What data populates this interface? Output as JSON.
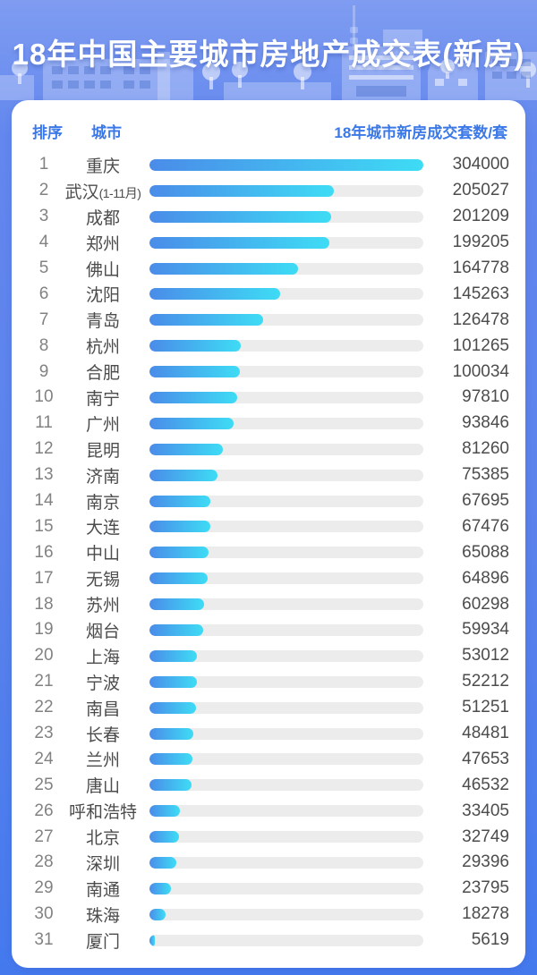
{
  "title": "18年中国主要城市房地产成交表(新房)",
  "table": {
    "rank_header": "排序",
    "city_header": "城市",
    "value_header": "18年城市新房成交套数/套"
  },
  "colors": {
    "background_blue": "#5b82ec",
    "header_label_blue": "#3b78e8",
    "bar_gradient_start": "#4a8ce9",
    "bar_gradient_end": "#3edcf5",
    "bar_track": "#ececec",
    "rank_text": "#828282",
    "body_text": "#4c4c4c"
  },
  "rows": [
    {
      "rank": "1",
      "city": "重庆",
      "note": "",
      "value": "304000"
    },
    {
      "rank": "2",
      "city": "武汉",
      "note": "(1-11月)",
      "value": "205027"
    },
    {
      "rank": "3",
      "city": "成都",
      "note": "",
      "value": "201209"
    },
    {
      "rank": "4",
      "city": "郑州",
      "note": "",
      "value": "199205"
    },
    {
      "rank": "5",
      "city": "佛山",
      "note": "",
      "value": "164778"
    },
    {
      "rank": "6",
      "city": "沈阳",
      "note": "",
      "value": "145263"
    },
    {
      "rank": "7",
      "city": "青岛",
      "note": "",
      "value": "126478"
    },
    {
      "rank": "8",
      "city": "杭州",
      "note": "",
      "value": "101265"
    },
    {
      "rank": "9",
      "city": "合肥",
      "note": "",
      "value": "100034"
    },
    {
      "rank": "10",
      "city": "南宁",
      "note": "",
      "value": "97810"
    },
    {
      "rank": "11",
      "city": "广州",
      "note": "",
      "value": "93846"
    },
    {
      "rank": "12",
      "city": "昆明",
      "note": "",
      "value": "81260"
    },
    {
      "rank": "13",
      "city": "济南",
      "note": "",
      "value": "75385"
    },
    {
      "rank": "14",
      "city": "南京",
      "note": "",
      "value": "67695"
    },
    {
      "rank": "15",
      "city": "大连",
      "note": "",
      "value": "67476"
    },
    {
      "rank": "16",
      "city": "中山",
      "note": "",
      "value": "65088"
    },
    {
      "rank": "17",
      "city": "无锡",
      "note": "",
      "value": "64896"
    },
    {
      "rank": "18",
      "city": "苏州",
      "note": "",
      "value": "60298"
    },
    {
      "rank": "19",
      "city": "烟台",
      "note": "",
      "value": "59934"
    },
    {
      "rank": "20",
      "city": "上海",
      "note": "",
      "value": "53012"
    },
    {
      "rank": "21",
      "city": "宁波",
      "note": "",
      "value": "52212"
    },
    {
      "rank": "22",
      "city": "南昌",
      "note": "",
      "value": "51251"
    },
    {
      "rank": "23",
      "city": "长春",
      "note": "",
      "value": "48481"
    },
    {
      "rank": "24",
      "city": "兰州",
      "note": "",
      "value": "47653"
    },
    {
      "rank": "25",
      "city": "唐山",
      "note": "",
      "value": "46532"
    },
    {
      "rank": "26",
      "city": "呼和浩特",
      "note": "",
      "value": "33405"
    },
    {
      "rank": "27",
      "city": "北京",
      "note": "",
      "value": "32749"
    },
    {
      "rank": "28",
      "city": "深圳",
      "note": "",
      "value": "29396"
    },
    {
      "rank": "29",
      "city": "南通",
      "note": "",
      "value": "23795"
    },
    {
      "rank": "30",
      "city": "珠海",
      "note": "",
      "value": "18278"
    },
    {
      "rank": "31",
      "city": "厦门",
      "note": "",
      "value": "5619"
    }
  ],
  "chart_data": {
    "type": "bar",
    "orientation": "horizontal",
    "title": "18年中国主要城市房地产成交表(新房)",
    "value_label": "18年城市新房成交套数/套",
    "categories": [
      "重庆",
      "武汉(1-11月)",
      "成都",
      "郑州",
      "佛山",
      "沈阳",
      "青岛",
      "杭州",
      "合肥",
      "南宁",
      "广州",
      "昆明",
      "济南",
      "南京",
      "大连",
      "中山",
      "无锡",
      "苏州",
      "烟台",
      "上海",
      "宁波",
      "南昌",
      "长春",
      "兰州",
      "唐山",
      "呼和浩特",
      "北京",
      "深圳",
      "南通",
      "珠海",
      "厦门"
    ],
    "values": [
      304000,
      205027,
      201209,
      199205,
      164778,
      145263,
      126478,
      101265,
      100034,
      97810,
      93846,
      81260,
      75385,
      67695,
      67476,
      65088,
      64896,
      60298,
      59934,
      53012,
      52212,
      51251,
      48481,
      47653,
      46532,
      33405,
      32749,
      29396,
      23795,
      18278,
      5619
    ],
    "xlim": [
      0,
      304000
    ],
    "grid": false,
    "legend": false,
    "bar_scale_max": 304000
  }
}
